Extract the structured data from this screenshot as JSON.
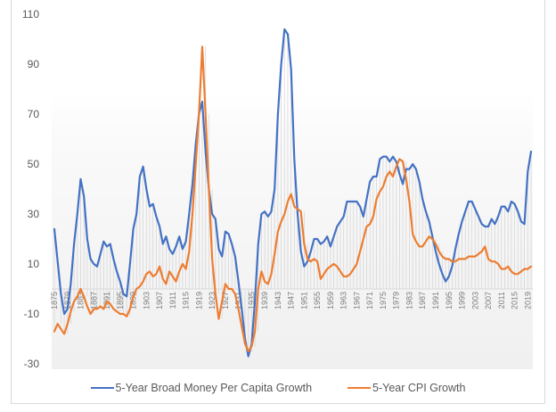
{
  "chart_data": {
    "type": "line",
    "title": "",
    "xlabel": "",
    "ylabel": "",
    "ylim": [
      -30,
      110
    ],
    "yticks": [
      110,
      90,
      70,
      50,
      30,
      10,
      -10,
      -30
    ],
    "x_start": 1875,
    "x_end": 2020,
    "xtick_labels": [
      "1875",
      "1879",
      "1883",
      "1887",
      "1891",
      "1895",
      "1899",
      "1903",
      "1907",
      "1911",
      "1915",
      "1919",
      "1923",
      "1927",
      "1931",
      "1935",
      "1939",
      "1943",
      "1947",
      "1951",
      "1955",
      "1959",
      "1963",
      "1967",
      "1971",
      "1975",
      "1979",
      "1983",
      "1987",
      "1991",
      "1995",
      "1999",
      "2003",
      "2007",
      "2011",
      "2015",
      "2019"
    ],
    "legend_position": "bottom",
    "series": [
      {
        "name": "5-Year Broad Money Per Capita Growth",
        "color": "#4472C4",
        "keypoints": [
          [
            1875,
            24
          ],
          [
            1877,
            -2
          ],
          [
            1878,
            -10
          ],
          [
            1879,
            -8
          ],
          [
            1880,
            2
          ],
          [
            1881,
            18
          ],
          [
            1882,
            30
          ],
          [
            1883,
            44
          ],
          [
            1884,
            37
          ],
          [
            1885,
            20
          ],
          [
            1886,
            12
          ],
          [
            1887,
            10
          ],
          [
            1888,
            9
          ],
          [
            1889,
            14
          ],
          [
            1890,
            19
          ],
          [
            1891,
            17
          ],
          [
            1892,
            18
          ],
          [
            1893,
            12
          ],
          [
            1894,
            7
          ],
          [
            1895,
            3
          ],
          [
            1896,
            -2
          ],
          [
            1897,
            -3
          ],
          [
            1898,
            10
          ],
          [
            1899,
            24
          ],
          [
            1900,
            30
          ],
          [
            1901,
            45
          ],
          [
            1902,
            49
          ],
          [
            1903,
            40
          ],
          [
            1904,
            33
          ],
          [
            1905,
            34
          ],
          [
            1906,
            29
          ],
          [
            1907,
            25
          ],
          [
            1908,
            18
          ],
          [
            1909,
            21
          ],
          [
            1910,
            16
          ],
          [
            1911,
            14
          ],
          [
            1912,
            17
          ],
          [
            1913,
            21
          ],
          [
            1914,
            16
          ],
          [
            1915,
            19
          ],
          [
            1916,
            30
          ],
          [
            1917,
            42
          ],
          [
            1918,
            58
          ],
          [
            1919,
            70
          ],
          [
            1920,
            75
          ],
          [
            1921,
            55
          ],
          [
            1922,
            40
          ],
          [
            1923,
            30
          ],
          [
            1924,
            28
          ],
          [
            1925,
            16
          ],
          [
            1926,
            13
          ],
          [
            1927,
            23
          ],
          [
            1928,
            22
          ],
          [
            1929,
            18
          ],
          [
            1930,
            13
          ],
          [
            1931,
            3
          ],
          [
            1932,
            -8
          ],
          [
            1933,
            -20
          ],
          [
            1934,
            -27
          ],
          [
            1935,
            -22
          ],
          [
            1936,
            -5
          ],
          [
            1937,
            18
          ],
          [
            1938,
            30
          ],
          [
            1939,
            31
          ],
          [
            1940,
            29
          ],
          [
            1941,
            31
          ],
          [
            1942,
            40
          ],
          [
            1943,
            70
          ],
          [
            1944,
            90
          ],
          [
            1945,
            104
          ],
          [
            1946,
            102
          ],
          [
            1947,
            88
          ],
          [
            1948,
            52
          ],
          [
            1949,
            30
          ],
          [
            1950,
            15
          ],
          [
            1951,
            9
          ],
          [
            1952,
            11
          ],
          [
            1953,
            15
          ],
          [
            1954,
            20
          ],
          [
            1955,
            20
          ],
          [
            1956,
            18
          ],
          [
            1957,
            19
          ],
          [
            1958,
            21
          ],
          [
            1959,
            17
          ],
          [
            1960,
            21
          ],
          [
            1961,
            25
          ],
          [
            1962,
            27
          ],
          [
            1963,
            29
          ],
          [
            1964,
            35
          ],
          [
            1965,
            35
          ],
          [
            1966,
            35
          ],
          [
            1967,
            35
          ],
          [
            1968,
            33
          ],
          [
            1969,
            29
          ],
          [
            1970,
            36
          ],
          [
            1971,
            43
          ],
          [
            1972,
            45
          ],
          [
            1973,
            45
          ],
          [
            1974,
            52
          ],
          [
            1975,
            53
          ],
          [
            1976,
            53
          ],
          [
            1977,
            51
          ],
          [
            1978,
            53
          ],
          [
            1979,
            51
          ],
          [
            1980,
            46
          ],
          [
            1981,
            42
          ],
          [
            1982,
            48
          ],
          [
            1983,
            48
          ],
          [
            1984,
            50
          ],
          [
            1985,
            48
          ],
          [
            1986,
            43
          ],
          [
            1987,
            36
          ],
          [
            1988,
            31
          ],
          [
            1989,
            27
          ],
          [
            1990,
            21
          ],
          [
            1991,
            15
          ],
          [
            1992,
            10
          ],
          [
            1993,
            6
          ],
          [
            1994,
            3
          ],
          [
            1995,
            5
          ],
          [
            1996,
            9
          ],
          [
            1997,
            16
          ],
          [
            1998,
            22
          ],
          [
            1999,
            27
          ],
          [
            2000,
            31
          ],
          [
            2001,
            35
          ],
          [
            2002,
            35
          ],
          [
            2003,
            32
          ],
          [
            2004,
            29
          ],
          [
            2005,
            26
          ],
          [
            2006,
            25
          ],
          [
            2007,
            25
          ],
          [
            2008,
            28
          ],
          [
            2009,
            26
          ],
          [
            2010,
            29
          ],
          [
            2011,
            33
          ],
          [
            2012,
            33
          ],
          [
            2013,
            31
          ],
          [
            2014,
            35
          ],
          [
            2015,
            34
          ],
          [
            2016,
            31
          ],
          [
            2017,
            27
          ],
          [
            2018,
            26
          ],
          [
            2019,
            47
          ],
          [
            2020,
            55
          ]
        ]
      },
      {
        "name": "5-Year CPI Growth",
        "color": "#ED7D31",
        "keypoints": [
          [
            1875,
            -17
          ],
          [
            1876,
            -14
          ],
          [
            1877,
            -16
          ],
          [
            1878,
            -18
          ],
          [
            1879,
            -14
          ],
          [
            1880,
            -9
          ],
          [
            1881,
            -5
          ],
          [
            1882,
            -3
          ],
          [
            1883,
            0
          ],
          [
            1884,
            -3
          ],
          [
            1885,
            -7
          ],
          [
            1886,
            -10
          ],
          [
            1887,
            -8
          ],
          [
            1888,
            -8
          ],
          [
            1889,
            -7
          ],
          [
            1890,
            -8
          ],
          [
            1891,
            -5
          ],
          [
            1892,
            -6
          ],
          [
            1893,
            -8
          ],
          [
            1894,
            -9
          ],
          [
            1895,
            -10
          ],
          [
            1896,
            -10
          ],
          [
            1897,
            -11
          ],
          [
            1898,
            -8
          ],
          [
            1899,
            -3
          ],
          [
            1900,
            0
          ],
          [
            1901,
            1
          ],
          [
            1902,
            3
          ],
          [
            1903,
            6
          ],
          [
            1904,
            7
          ],
          [
            1905,
            5
          ],
          [
            1906,
            6
          ],
          [
            1907,
            9
          ],
          [
            1908,
            4
          ],
          [
            1909,
            2
          ],
          [
            1910,
            7
          ],
          [
            1911,
            5
          ],
          [
            1912,
            3
          ],
          [
            1913,
            7
          ],
          [
            1914,
            10
          ],
          [
            1915,
            8
          ],
          [
            1916,
            15
          ],
          [
            1917,
            30
          ],
          [
            1918,
            50
          ],
          [
            1919,
            70
          ],
          [
            1920,
            97
          ],
          [
            1921,
            70
          ],
          [
            1922,
            40
          ],
          [
            1923,
            12
          ],
          [
            1924,
            -2
          ],
          [
            1925,
            -12
          ],
          [
            1926,
            -5
          ],
          [
            1927,
            2
          ],
          [
            1928,
            0
          ],
          [
            1929,
            0
          ],
          [
            1930,
            -2
          ],
          [
            1931,
            -8
          ],
          [
            1932,
            -15
          ],
          [
            1933,
            -22
          ],
          [
            1934,
            -25
          ],
          [
            1935,
            -23
          ],
          [
            1936,
            -17
          ],
          [
            1937,
            0
          ],
          [
            1938,
            7
          ],
          [
            1939,
            3
          ],
          [
            1940,
            2
          ],
          [
            1941,
            6
          ],
          [
            1942,
            14
          ],
          [
            1943,
            23
          ],
          [
            1944,
            27
          ],
          [
            1945,
            30
          ],
          [
            1946,
            35
          ],
          [
            1947,
            38
          ],
          [
            1948,
            33
          ],
          [
            1949,
            32
          ],
          [
            1950,
            31
          ],
          [
            1951,
            18
          ],
          [
            1952,
            12
          ],
          [
            1953,
            11
          ],
          [
            1954,
            12
          ],
          [
            1955,
            11
          ],
          [
            1956,
            4
          ],
          [
            1957,
            6
          ],
          [
            1958,
            8
          ],
          [
            1959,
            9
          ],
          [
            1960,
            10
          ],
          [
            1961,
            9
          ],
          [
            1962,
            7
          ],
          [
            1963,
            5
          ],
          [
            1964,
            5
          ],
          [
            1965,
            6
          ],
          [
            1966,
            8
          ],
          [
            1967,
            10
          ],
          [
            1968,
            15
          ],
          [
            1969,
            20
          ],
          [
            1970,
            25
          ],
          [
            1971,
            26
          ],
          [
            1972,
            29
          ],
          [
            1973,
            36
          ],
          [
            1974,
            39
          ],
          [
            1975,
            41
          ],
          [
            1976,
            45
          ],
          [
            1977,
            47
          ],
          [
            1978,
            45
          ],
          [
            1979,
            49
          ],
          [
            1980,
            52
          ],
          [
            1981,
            51
          ],
          [
            1982,
            44
          ],
          [
            1983,
            35
          ],
          [
            1984,
            22
          ],
          [
            1985,
            19
          ],
          [
            1986,
            17
          ],
          [
            1987,
            17
          ],
          [
            1988,
            19
          ],
          [
            1989,
            21
          ],
          [
            1990,
            20
          ],
          [
            1991,
            18
          ],
          [
            1992,
            15
          ],
          [
            1993,
            13
          ],
          [
            1994,
            12
          ],
          [
            1995,
            12
          ],
          [
            1996,
            11
          ],
          [
            1997,
            11
          ],
          [
            1998,
            12
          ],
          [
            1999,
            12
          ],
          [
            2000,
            12
          ],
          [
            2001,
            13
          ],
          [
            2002,
            13
          ],
          [
            2003,
            13
          ],
          [
            2004,
            14
          ],
          [
            2005,
            15
          ],
          [
            2006,
            17
          ],
          [
            2007,
            12
          ],
          [
            2008,
            11
          ],
          [
            2009,
            11
          ],
          [
            2010,
            10
          ],
          [
            2011,
            8
          ],
          [
            2012,
            8
          ],
          [
            2013,
            9
          ],
          [
            2014,
            7
          ],
          [
            2015,
            6
          ],
          [
            2016,
            6
          ],
          [
            2017,
            7
          ],
          [
            2018,
            8
          ],
          [
            2019,
            8
          ],
          [
            2020,
            9
          ]
        ]
      }
    ]
  },
  "legend": {
    "items": [
      {
        "label": "5-Year Broad Money Per Capita Growth",
        "color": "#4472C4"
      },
      {
        "label": "5-Year CPI Growth",
        "color": "#ED7D31"
      }
    ]
  }
}
